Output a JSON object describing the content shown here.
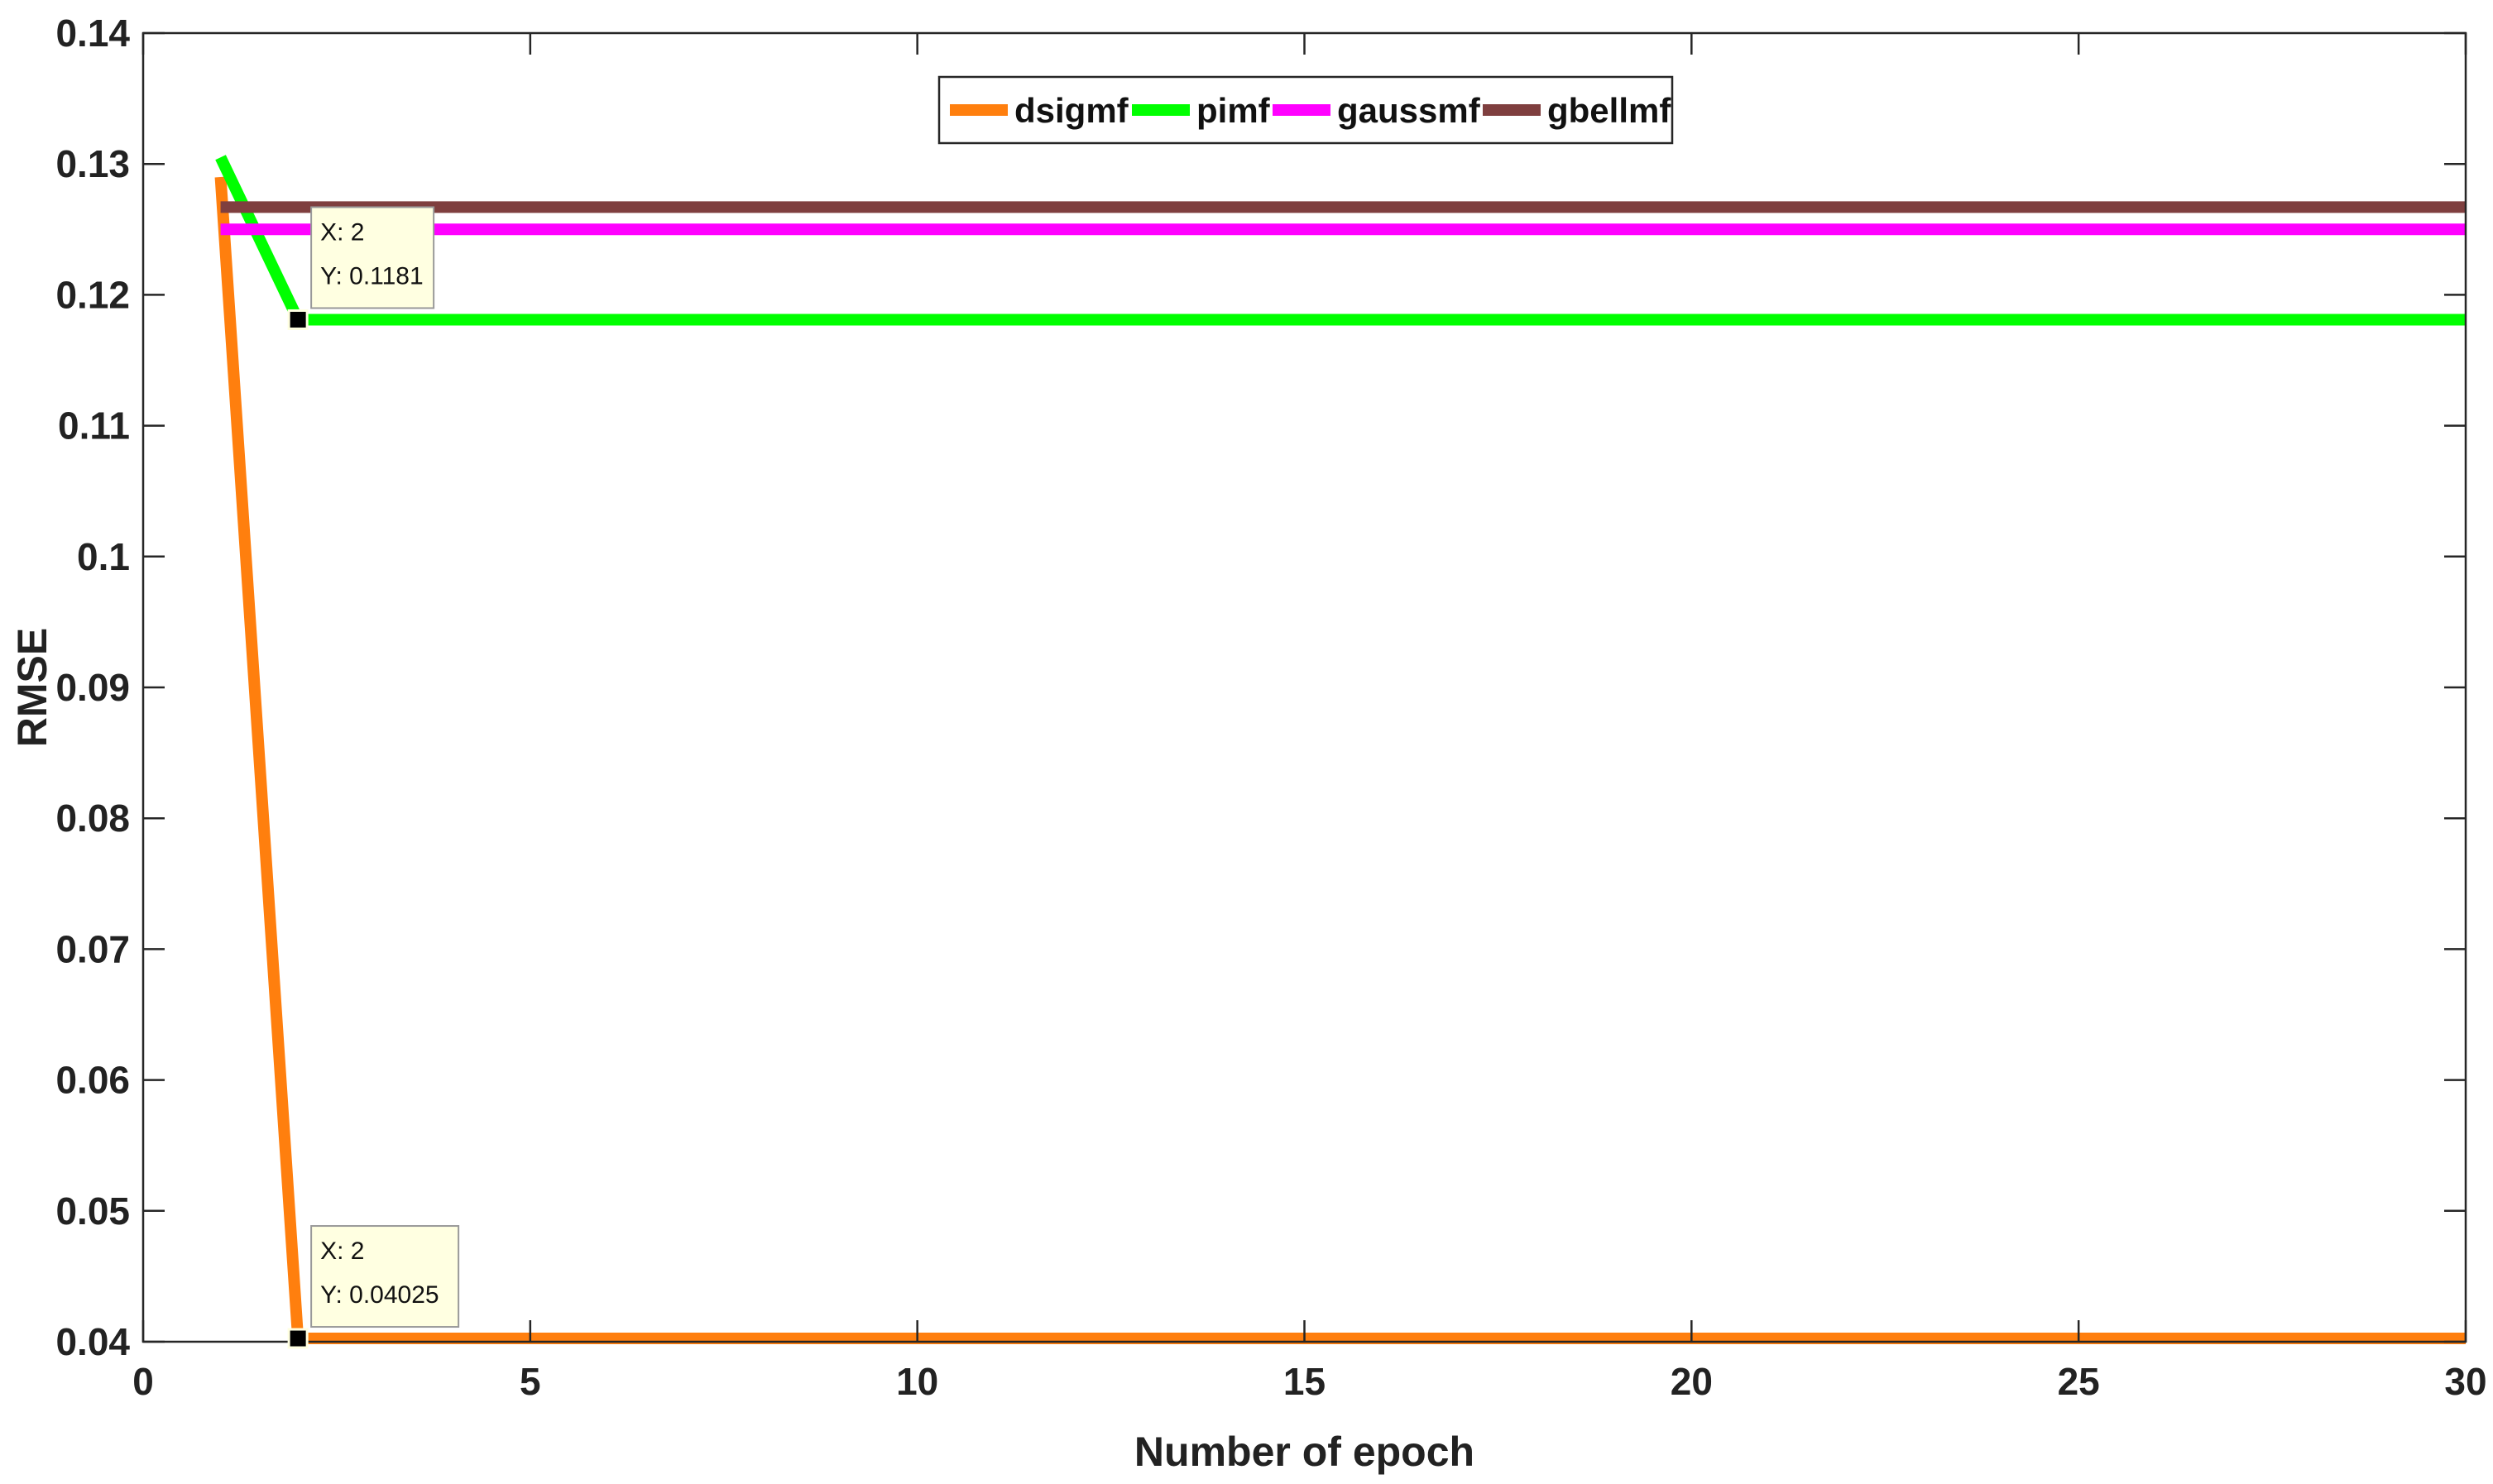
{
  "chart_data": {
    "type": "line",
    "title": "",
    "xlabel": "Number of epoch",
    "ylabel": "RMSE",
    "xlim": [
      0,
      30
    ],
    "ylim": [
      0.04,
      0.14
    ],
    "xticks": [
      0,
      5,
      10,
      15,
      20,
      25,
      30
    ],
    "yticks": [
      0.04,
      0.05,
      0.06,
      0.07,
      0.08,
      0.09,
      0.1,
      0.11,
      0.12,
      0.13,
      0.14
    ],
    "xtick_labels": [
      "0",
      "5",
      "10",
      "15",
      "20",
      "25",
      "30"
    ],
    "ytick_labels": [
      "0.04",
      "0.05",
      "0.06",
      "0.07",
      "0.08",
      "0.09",
      "0.1",
      "0.11",
      "0.12",
      "0.13",
      "0.14"
    ],
    "grid": false,
    "legend_position": "top-center",
    "series": [
      {
        "name": "dsigmf",
        "color": "#ff7f0e",
        "x": [
          1,
          2,
          30
        ],
        "y": [
          0.129,
          0.04025,
          0.04025
        ]
      },
      {
        "name": "pimf",
        "color": "#00ff00",
        "x": [
          1,
          2,
          30
        ],
        "y": [
          0.1305,
          0.1181,
          0.1181
        ]
      },
      {
        "name": "gaussmf",
        "color": "#ff00ff",
        "x": [
          1,
          2,
          30
        ],
        "y": [
          0.125,
          0.125,
          0.125
        ]
      },
      {
        "name": "gbellmf",
        "color": "#7f3f3f",
        "x": [
          1,
          2,
          30
        ],
        "y": [
          0.1267,
          0.1267,
          0.1267
        ]
      }
    ],
    "datatips": [
      {
        "series": "pimf",
        "x": 2,
        "y": 0.1181,
        "line1": "X: 2",
        "line2": "Y: 0.1181"
      },
      {
        "series": "dsigmf",
        "x": 2,
        "y": 0.04025,
        "line1": "X: 2",
        "line2": "Y: 0.04025"
      }
    ]
  }
}
